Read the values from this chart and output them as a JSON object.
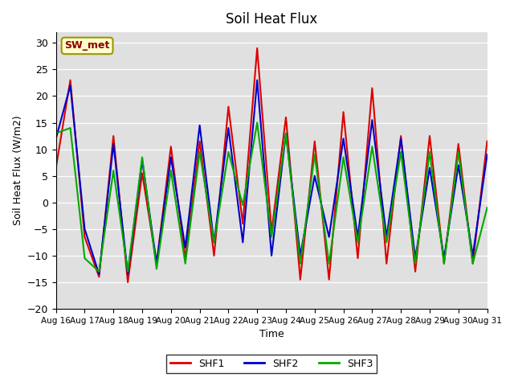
{
  "title": "Soil Heat Flux",
  "xlabel": "Time",
  "ylabel": "Soil Heat Flux (W/m2)",
  "ylim": [
    -20,
    32
  ],
  "yticks": [
    -20,
    -15,
    -10,
    -5,
    0,
    5,
    10,
    15,
    20,
    25,
    30
  ],
  "date_labels": [
    "Aug 16",
    "Aug 17",
    "Aug 18",
    "Aug 19",
    "Aug 20",
    "Aug 21",
    "Aug 22",
    "Aug 23",
    "Aug 24",
    "Aug 25",
    "Aug 26",
    "Aug 27",
    "Aug 28",
    "Aug 29",
    "Aug 30",
    "Aug 31"
  ],
  "n_days": 15,
  "shf1_color": "#dd0000",
  "shf2_color": "#0000cc",
  "shf3_color": "#00aa00",
  "bg_color": "#e0e0e0",
  "legend_box_facecolor": "#ffffcc",
  "legend_box_edgecolor": "#999900",
  "legend_text": "SW_met",
  "series_labels": [
    "SHF1",
    "SHF2",
    "SHF3"
  ],
  "shf1": [
    6.5,
    23.0,
    -6.5,
    -14.0,
    12.5,
    -15.0,
    5.5,
    -11.5,
    10.5,
    -10.5,
    11.5,
    -10.0,
    18.0,
    -4.0,
    29.0,
    -5.5,
    16.0,
    -14.5,
    11.5,
    -14.5,
    17.0,
    -10.5,
    21.5,
    -11.5,
    12.5,
    -13.0,
    12.5,
    -11.5,
    11.0,
    -11.5,
    11.5
  ],
  "shf2": [
    12.0,
    22.0,
    -5.0,
    -13.5,
    11.0,
    -13.5,
    8.0,
    -11.5,
    8.5,
    -8.5,
    14.5,
    -7.5,
    14.0,
    -7.5,
    23.0,
    -10.0,
    13.0,
    -10.0,
    5.0,
    -6.5,
    12.0,
    -6.5,
    15.5,
    -6.5,
    12.0,
    -10.5,
    6.5,
    -10.5,
    7.0,
    -10.0,
    9.0
  ],
  "shf3": [
    13.0,
    14.0,
    -10.5,
    -13.0,
    6.0,
    -13.0,
    8.5,
    -12.5,
    6.0,
    -11.5,
    9.5,
    -7.5,
    9.5,
    -0.5,
    15.0,
    -6.5,
    13.0,
    -11.5,
    9.0,
    -11.5,
    8.5,
    -7.5,
    10.5,
    -7.5,
    9.5,
    -11.5,
    9.5,
    -11.5,
    9.5,
    -11.5,
    -1.0
  ]
}
